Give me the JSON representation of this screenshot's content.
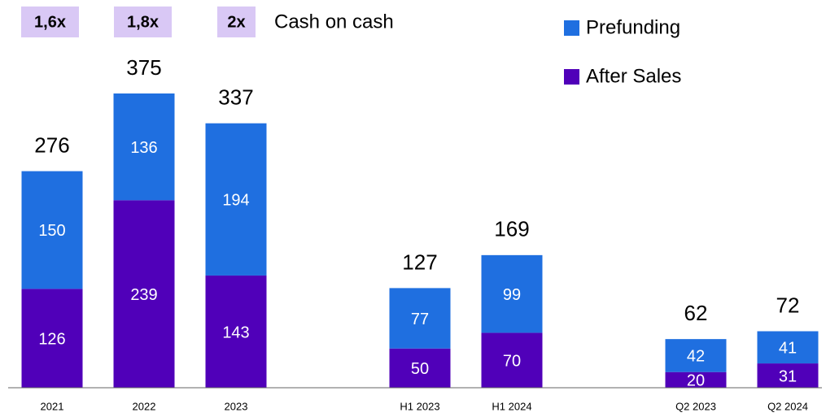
{
  "chart_data": {
    "type": "stacked_bar",
    "categories": [
      "2021",
      "2022",
      "2023",
      "H1 2023",
      "H1 2024",
      "Q2 2023",
      "Q2 2024"
    ],
    "series": [
      {
        "name": "After Sales",
        "color": "#5000b9",
        "values": [
          126,
          239,
          143,
          50,
          70,
          20,
          31
        ]
      },
      {
        "name": "Prefunding",
        "color": "#1f6fe0",
        "values": [
          150,
          136,
          194,
          77,
          99,
          42,
          41
        ]
      }
    ],
    "totals": [
      276,
      375,
      337,
      127,
      169,
      62,
      72
    ],
    "annotations": [
      "1,6x",
      "1,8x",
      "2x"
    ],
    "annotation_label": "Cash on cash"
  }
}
